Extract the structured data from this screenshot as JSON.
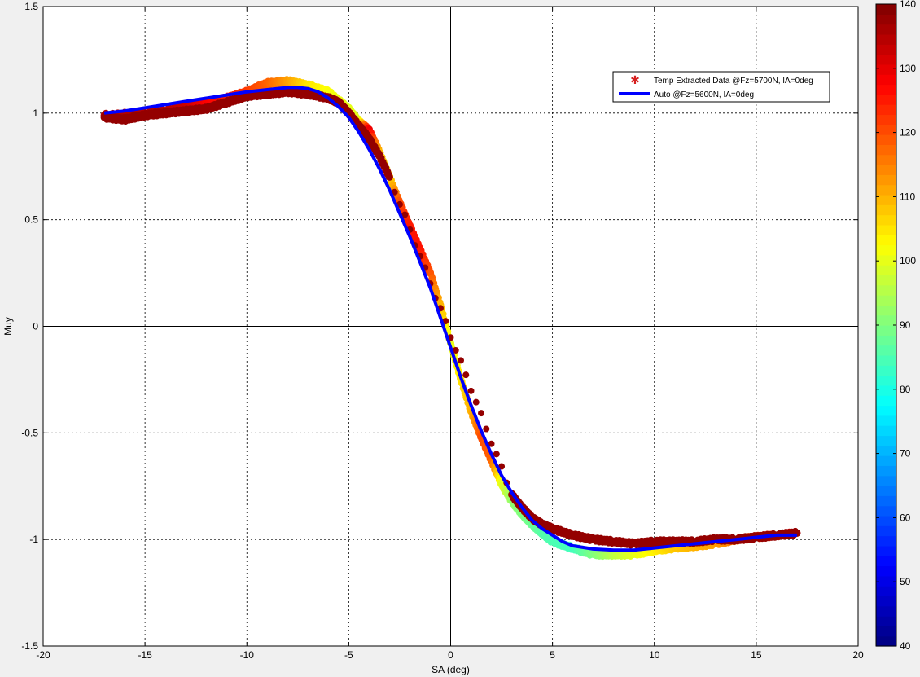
{
  "chart_data": {
    "type": "scatter",
    "xlabel": "SA (deg)",
    "ylabel": "Muy",
    "xlim": [
      -20,
      20
    ],
    "ylim": [
      -1.5,
      1.5
    ],
    "xticks": [
      -20,
      -15,
      -10,
      -5,
      0,
      5,
      10,
      15,
      20
    ],
    "xtick_labels": [
      "-20",
      "-15",
      "-10",
      "-5",
      "0",
      "5",
      "10",
      "15",
      "20"
    ],
    "yticks": [
      -1.5,
      -1,
      -0.5,
      0,
      0.5,
      1,
      1.5
    ],
    "ytick_labels": [
      "-1.5",
      "-1",
      "-0.5",
      "0",
      "0.5",
      "1",
      "1.5"
    ],
    "grid": true,
    "legend_position": "top-right",
    "colorbar": {
      "colormap": "jet",
      "range": [
        40,
        140
      ],
      "ticks": [
        40,
        50,
        60,
        70,
        80,
        90,
        100,
        110,
        120,
        130,
        140
      ],
      "tick_labels": [
        "40",
        "50",
        "60",
        "70",
        "80",
        "90",
        "100",
        "110",
        "120",
        "130",
        "140"
      ]
    },
    "series": [
      {
        "name": "Temp Extracted Data @Fz=5700N, IA=0deg",
        "kind": "scatter",
        "color": "#d62020",
        "color_by": "temperature",
        "x": [
          -17,
          -15,
          -13,
          -12,
          -11,
          -10,
          -9,
          -8,
          -7,
          -6,
          -5,
          -4.5,
          -4,
          -3.5,
          -3,
          -2.5,
          -2,
          -1.5,
          -1,
          -0.5,
          0,
          0.5,
          1,
          1.5,
          2,
          2.5,
          3,
          3.5,
          4,
          4.5,
          5,
          6,
          7,
          8,
          9,
          10,
          11,
          12,
          13,
          14,
          15,
          16,
          17
        ],
        "y": [
          0.99,
          1.0,
          1.03,
          1.05,
          1.07,
          1.1,
          1.14,
          1.15,
          1.13,
          1.1,
          1.02,
          0.96,
          0.92,
          0.82,
          0.7,
          0.58,
          0.47,
          0.36,
          0.25,
          0.1,
          -0.08,
          -0.25,
          -0.4,
          -0.52,
          -0.63,
          -0.74,
          -0.82,
          -0.88,
          -0.93,
          -0.97,
          -1.01,
          -1.04,
          -1.07,
          -1.07,
          -1.07,
          -1.05,
          -1.04,
          -1.03,
          -1.02,
          -1.0,
          -0.99,
          -0.98,
          -0.97
        ],
        "temp": [
          135,
          135,
          133,
          128,
          125,
          122,
          118,
          112,
          105,
          102,
          100,
          100,
          130,
          110,
          105,
          120,
          125,
          126,
          120,
          110,
          100,
          105,
          110,
          120,
          118,
          100,
          92,
          90,
          88,
          86,
          85,
          84,
          90,
          96,
          100,
          104,
          108,
          110,
          112,
          116,
          120,
          125,
          130
        ]
      },
      {
        "name": "Temp Extracted Data @Fz=5700N, IA=0deg",
        "kind": "scatter",
        "color_by": "temperature",
        "x": [
          -17,
          -16,
          -15,
          -14,
          -13,
          -12,
          -11,
          -10,
          -9,
          -8,
          -7,
          -6,
          -5.5,
          -5,
          -4.5,
          -4,
          -3.5,
          -3,
          3,
          3.5,
          4,
          4.5,
          5,
          6,
          7,
          8,
          9,
          10,
          11,
          12,
          13,
          14,
          15,
          16,
          17
        ],
        "y": [
          0.98,
          0.97,
          0.99,
          1.0,
          1.01,
          1.02,
          1.05,
          1.08,
          1.09,
          1.1,
          1.09,
          1.07,
          1.05,
          1.0,
          0.94,
          0.88,
          0.8,
          0.7,
          -0.79,
          -0.85,
          -0.9,
          -0.93,
          -0.95,
          -0.98,
          -1.0,
          -1.01,
          -1.02,
          -1.01,
          -1.01,
          -1.01,
          -1.0,
          -1.0,
          -0.99,
          -0.98,
          -0.97
        ],
        "temp": [
          138,
          138,
          138,
          138,
          138,
          138,
          138,
          138,
          138,
          138,
          138,
          138,
          138,
          138,
          138,
          138,
          138,
          138,
          138,
          138,
          138,
          138,
          138,
          138,
          138,
          138,
          138,
          138,
          138,
          138,
          138,
          138,
          138,
          138,
          138
        ]
      },
      {
        "name": "Auto @Fz=5600N, IA=0deg",
        "kind": "line",
        "color": "#0000ff",
        "x": [
          -17,
          -16,
          -15,
          -14,
          -13,
          -12,
          -11,
          -10,
          -9,
          -8,
          -7.5,
          -7,
          -6.5,
          -6,
          -5.5,
          -5,
          -4.5,
          -4,
          -3.5,
          -3,
          -2.5,
          -2,
          -1.5,
          -1,
          -0.5,
          0,
          0.5,
          1,
          1.5,
          2,
          2.5,
          3,
          3.5,
          4,
          4.5,
          5,
          5.5,
          6,
          7,
          8,
          9,
          10,
          11,
          12,
          13,
          14,
          15,
          16,
          17
        ],
        "y": [
          1.0,
          1.01,
          1.025,
          1.04,
          1.055,
          1.07,
          1.085,
          1.1,
          1.11,
          1.12,
          1.12,
          1.115,
          1.1,
          1.07,
          1.03,
          0.98,
          0.91,
          0.83,
          0.74,
          0.64,
          0.53,
          0.42,
          0.3,
          0.18,
          0.04,
          -0.1,
          -0.24,
          -0.37,
          -0.49,
          -0.6,
          -0.7,
          -0.78,
          -0.85,
          -0.91,
          -0.95,
          -0.98,
          -1.01,
          -1.03,
          -1.045,
          -1.05,
          -1.05,
          -1.04,
          -1.03,
          -1.02,
          -1.01,
          -1.0,
          -0.99,
          -0.98,
          -0.98
        ]
      }
    ]
  }
}
